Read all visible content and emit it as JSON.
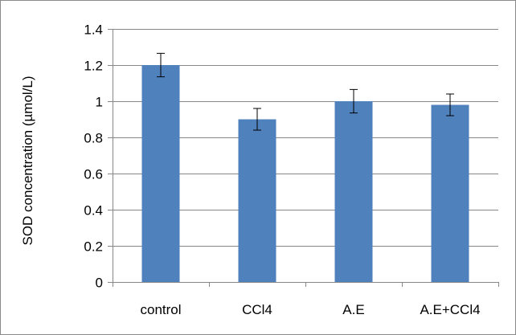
{
  "chart_data": {
    "type": "bar",
    "title": "",
    "xlabel": "",
    "ylabel": "SOD concentration (µmol/L)",
    "categories": [
      "control",
      "CCl4",
      "A.E",
      "A.E+CCl4"
    ],
    "values": [
      1.2,
      0.9,
      1.0,
      0.98
    ],
    "error": [
      0.065,
      0.06,
      0.065,
      0.06
    ],
    "ylim": [
      0,
      1.4
    ],
    "yticks": [
      0,
      0.2,
      0.4,
      0.6,
      0.8,
      1,
      1.2,
      1.4
    ],
    "ytick_labels": [
      "0",
      "0.2",
      "0.4",
      "0.6",
      "0.8",
      "1",
      "1.2",
      "1.4"
    ],
    "grid": true,
    "legend": "none",
    "bar_color": "#4f81bd",
    "grid_color": "#878787"
  }
}
